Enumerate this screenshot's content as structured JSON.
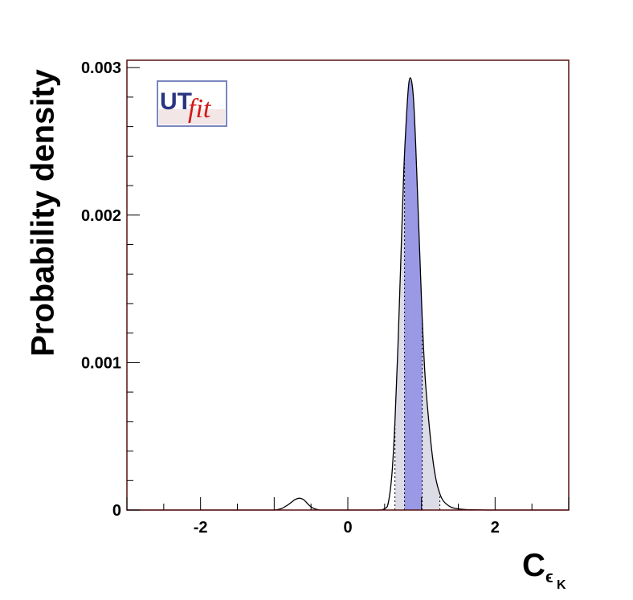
{
  "chart_data": {
    "type": "area",
    "ylabel": "Probability density",
    "xlabel": "C",
    "xlabel_subscript": "ϵ",
    "xlabel_subsubscript": "K",
    "xlim": [
      -3,
      3
    ],
    "ylim": [
      0,
      0.00305
    ],
    "x_ticks": [
      -2,
      0,
      2
    ],
    "x_tick_labels": [
      "-2",
      "0",
      "2"
    ],
    "y_ticks": [
      0,
      0.001,
      0.002,
      0.003
    ],
    "y_tick_labels": [
      "0",
      "0.001",
      "0.002",
      "0.003"
    ],
    "grid": false,
    "legend": "none",
    "series": [
      {
        "x": [
          -3.0,
          -1.2,
          -1.0,
          -0.9,
          -0.8,
          -0.72,
          -0.66,
          -0.6,
          -0.52,
          -0.46,
          -0.38,
          -0.3,
          0.0,
          0.4,
          0.5,
          0.55,
          0.6,
          0.64,
          0.68,
          0.72,
          0.76,
          0.8,
          0.83,
          0.86,
          0.89,
          0.92,
          0.95,
          0.98,
          1.01,
          1.05,
          1.1,
          1.15,
          1.2,
          1.25,
          1.3,
          1.4,
          1.5,
          1.6,
          1.8,
          2.0,
          3.0
        ],
        "y": [
          0,
          0,
          0,
          1e-05,
          4e-05,
          7e-05,
          8e-05,
          7e-05,
          3e-05,
          1e-05,
          0,
          0,
          0,
          0,
          1e-05,
          5e-05,
          0.00025,
          0.0006,
          0.0011,
          0.0017,
          0.0023,
          0.0027,
          0.0029,
          0.00292,
          0.0028,
          0.0025,
          0.0021,
          0.0017,
          0.0013,
          0.0009,
          0.0006,
          0.00036,
          0.0002,
          0.00011,
          6e-05,
          2e-05,
          8e-06,
          3e-06,
          1e-06,
          0,
          0
        ]
      }
    ],
    "intervals": {
      "inner": [
        0.77,
        1.01
      ],
      "outer": [
        0.64,
        1.25
      ]
    },
    "colors": {
      "inner_fill": "#9999e6",
      "outer_fill": "#dcdce6",
      "curve": "#000000",
      "frame": "#5a1010",
      "logo_ut": "#2a3580",
      "logo_fit": "#d01818"
    }
  },
  "logo": {
    "ut": "UT",
    "fit": "fit"
  }
}
